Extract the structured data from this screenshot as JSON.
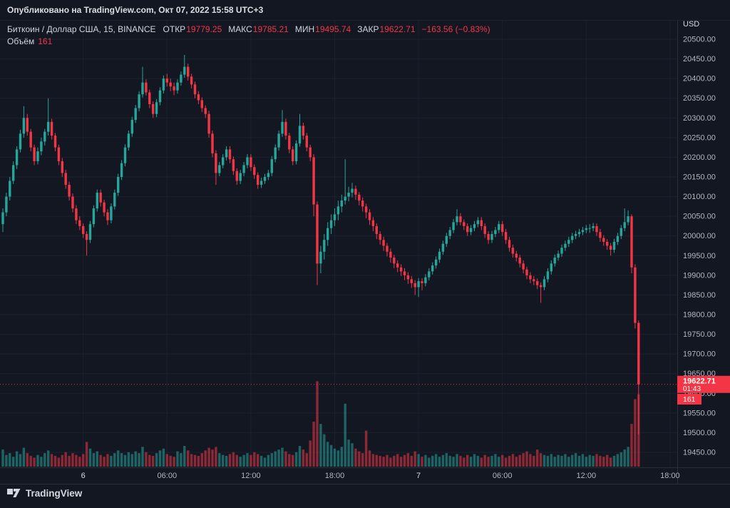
{
  "publish_bar": {
    "text": "Опубликовано на TradingView.com, Окт 07, 2022 15:58 UTC+3"
  },
  "legend": {
    "symbol": "Биткоин / Доллар США, 15, BINANCE",
    "fields": [
      {
        "label": "ОТКР",
        "value": "19779.25"
      },
      {
        "label": "МАКС",
        "value": "19785.21"
      },
      {
        "label": "МИН",
        "value": "19495.74"
      },
      {
        "label": "ЗАКР",
        "value": "19622.71"
      }
    ],
    "change": "−163.56 (−0.83%)",
    "volume_label": "Объём",
    "volume_value": "161"
  },
  "axis": {
    "currency": "USD",
    "price_min": 19450,
    "price_max": 20500,
    "price_step": 50,
    "time_ticks": [
      {
        "i": 23,
        "label": "6",
        "major": true
      },
      {
        "i": 47,
        "label": "06:00",
        "major": false
      },
      {
        "i": 71,
        "label": "12:00",
        "major": false
      },
      {
        "i": 95,
        "label": "18:00",
        "major": false
      },
      {
        "i": 119,
        "label": "7",
        "major": true
      },
      {
        "i": 143,
        "label": "06:00",
        "major": false
      },
      {
        "i": 167,
        "label": "12:00",
        "major": false
      },
      {
        "i": 191,
        "label": "18:00",
        "major": false
      }
    ],
    "last_price_badge": {
      "price": "19622.71",
      "countdown": "01:43"
    },
    "volume_badge": "161"
  },
  "footer": {
    "logo_text": "TradingView"
  },
  "colors": {
    "bg": "#131722",
    "up": "#26a69a",
    "down": "#f23645",
    "volume_up": "rgba(38,166,154,0.55)",
    "volume_down": "rgba(242,54,69,0.55)",
    "grid": "#1c2130",
    "border": "#2a2e39",
    "axis_text": "#b2b5be",
    "axis_text_bright": "#d8dadf",
    "badge_text": "#ffffff",
    "last_line": "#f23645"
  },
  "chart_data": {
    "type": "candlestick",
    "title": "Биткоин / Доллар США, 15, BINANCE",
    "exchange": "BINANCE",
    "interval_minutes": 15,
    "ylim": [
      19450,
      20500
    ],
    "current": {
      "open": 19779.25,
      "high": 19785.21,
      "low": 19495.74,
      "close": 19622.71,
      "change": -163.56,
      "change_pct": -0.83,
      "volume": 161
    },
    "ohlc": [
      [
        20030,
        20070,
        20010,
        20060
      ],
      [
        20060,
        20110,
        20050,
        20100
      ],
      [
        20100,
        20150,
        20090,
        20140
      ],
      [
        20140,
        20190,
        20132,
        20180
      ],
      [
        20180,
        20228,
        20170,
        20220
      ],
      [
        20220,
        20270,
        20212,
        20260
      ],
      [
        20260,
        20330,
        20250,
        20300
      ],
      [
        20300,
        20310,
        20255,
        20265
      ],
      [
        20265,
        20272,
        20215,
        20225
      ],
      [
        20225,
        20232,
        20180,
        20190
      ],
      [
        20190,
        20225,
        20182,
        20215
      ],
      [
        20215,
        20250,
        20205,
        20240
      ],
      [
        20240,
        20272,
        20230,
        20265
      ],
      [
        20265,
        20350,
        20255,
        20290
      ],
      [
        20290,
        20298,
        20245,
        20255
      ],
      [
        20255,
        20262,
        20215,
        20225
      ],
      [
        20225,
        20232,
        20180,
        20190
      ],
      [
        20190,
        20198,
        20150,
        20160
      ],
      [
        20160,
        20168,
        20120,
        20130
      ],
      [
        20130,
        20138,
        20090,
        20100
      ],
      [
        20100,
        20108,
        20060,
        20070
      ],
      [
        20070,
        20078,
        20030,
        20040
      ],
      [
        20040,
        20050,
        20015,
        20025
      ],
      [
        20025,
        20032,
        19995,
        20005
      ],
      [
        20005,
        20012,
        19950,
        19990
      ],
      [
        19990,
        20038,
        19982,
        20030
      ],
      [
        20030,
        20078,
        20022,
        20070
      ],
      [
        20070,
        20118,
        20062,
        20110
      ],
      [
        20110,
        20118,
        20075,
        20085
      ],
      [
        20085,
        20092,
        20050,
        20060
      ],
      [
        20060,
        20068,
        20028,
        20040
      ],
      [
        20040,
        20083,
        20032,
        20075
      ],
      [
        20075,
        20118,
        20067,
        20110
      ],
      [
        20110,
        20158,
        20102,
        20150
      ],
      [
        20150,
        20193,
        20142,
        20185
      ],
      [
        20185,
        20233,
        20177,
        20225
      ],
      [
        20225,
        20268,
        20217,
        20260
      ],
      [
        20260,
        20303,
        20252,
        20295
      ],
      [
        20295,
        20333,
        20287,
        20325
      ],
      [
        20325,
        20368,
        20317,
        20360
      ],
      [
        20360,
        20430,
        20352,
        20390
      ],
      [
        20390,
        20398,
        20357,
        20365
      ],
      [
        20365,
        20372,
        20325,
        20335
      ],
      [
        20335,
        20342,
        20300,
        20310
      ],
      [
        20310,
        20348,
        20302,
        20340
      ],
      [
        20340,
        20378,
        20332,
        20370
      ],
      [
        20370,
        20408,
        20362,
        20400
      ],
      [
        20400,
        20412,
        20380,
        20390
      ],
      [
        20390,
        20400,
        20368,
        20380
      ],
      [
        20380,
        20390,
        20358,
        20370
      ],
      [
        20370,
        20398,
        20362,
        20390
      ],
      [
        20390,
        20418,
        20382,
        20410
      ],
      [
        20410,
        20460,
        20402,
        20430
      ],
      [
        20430,
        20438,
        20395,
        20405
      ],
      [
        20405,
        20412,
        20375,
        20385
      ],
      [
        20385,
        20392,
        20350,
        20360
      ],
      [
        20360,
        20368,
        20335,
        20345
      ],
      [
        20345,
        20352,
        20315,
        20325
      ],
      [
        20325,
        20332,
        20300,
        20310
      ],
      [
        20310,
        20318,
        20250,
        20260
      ],
      [
        20260,
        20268,
        20200,
        20210
      ],
      [
        20210,
        20218,
        20130,
        20160
      ],
      [
        20160,
        20188,
        20152,
        20180
      ],
      [
        20180,
        20208,
        20172,
        20200
      ],
      [
        20200,
        20228,
        20192,
        20220
      ],
      [
        20220,
        20228,
        20185,
        20195
      ],
      [
        20195,
        20202,
        20155,
        20165
      ],
      [
        20165,
        20172,
        20130,
        20140
      ],
      [
        20140,
        20168,
        20132,
        20160
      ],
      [
        20160,
        20188,
        20152,
        20180
      ],
      [
        20180,
        20208,
        20172,
        20200
      ],
      [
        20200,
        20208,
        20165,
        20175
      ],
      [
        20175,
        20182,
        20145,
        20155
      ],
      [
        20155,
        20162,
        20120,
        20130
      ],
      [
        20130,
        20148,
        20122,
        20140
      ],
      [
        20140,
        20158,
        20132,
        20150
      ],
      [
        20150,
        20168,
        20142,
        20160
      ],
      [
        20160,
        20203,
        20152,
        20195
      ],
      [
        20195,
        20233,
        20187,
        20225
      ],
      [
        20225,
        20268,
        20217,
        20260
      ],
      [
        20260,
        20320,
        20252,
        20290
      ],
      [
        20290,
        20298,
        20245,
        20255
      ],
      [
        20255,
        20262,
        20210,
        20220
      ],
      [
        20220,
        20228,
        20180,
        20190
      ],
      [
        20190,
        20243,
        20182,
        20235
      ],
      [
        20235,
        20310,
        20227,
        20280
      ],
      [
        20280,
        20288,
        20245,
        20255
      ],
      [
        20255,
        20262,
        20215,
        20225
      ],
      [
        20225,
        20232,
        20190,
        20200
      ],
      [
        20200,
        20208,
        20050,
        20080
      ],
      [
        20080,
        20088,
        19875,
        19930
      ],
      [
        19930,
        19975,
        19905,
        19960
      ],
      [
        19960,
        20005,
        19940,
        19990
      ],
      [
        19990,
        20035,
        19975,
        20020
      ],
      [
        20020,
        20055,
        20005,
        20040
      ],
      [
        20040,
        20070,
        20025,
        20055
      ],
      [
        20055,
        20090,
        20040,
        20075
      ],
      [
        20075,
        20105,
        20060,
        20090
      ],
      [
        20090,
        20195,
        20080,
        20100
      ],
      [
        20100,
        20125,
        20088,
        20110
      ],
      [
        20110,
        20135,
        20098,
        20120
      ],
      [
        20120,
        20128,
        20092,
        20105
      ],
      [
        20105,
        20112,
        20078,
        20090
      ],
      [
        20090,
        20098,
        20062,
        20075
      ],
      [
        20075,
        20082,
        20045,
        20060
      ],
      [
        20060,
        20068,
        20028,
        20040
      ],
      [
        20040,
        20048,
        20012,
        20025
      ],
      [
        20025,
        20032,
        19992,
        20005
      ],
      [
        20005,
        20012,
        19978,
        19990
      ],
      [
        19990,
        19998,
        19962,
        19975
      ],
      [
        19975,
        19982,
        19948,
        19960
      ],
      [
        19960,
        19968,
        19932,
        19945
      ],
      [
        19945,
        19952,
        19918,
        19930
      ],
      [
        19930,
        19938,
        19908,
        19920
      ],
      [
        19920,
        19928,
        19898,
        19910
      ],
      [
        19910,
        19918,
        19888,
        19900
      ],
      [
        19900,
        19908,
        19878,
        19890
      ],
      [
        19890,
        19898,
        19868,
        19880
      ],
      [
        19880,
        19888,
        19850,
        19870
      ],
      [
        19870,
        19893,
        19845,
        19885
      ],
      [
        19885,
        19893,
        19862,
        19880
      ],
      [
        19880,
        19903,
        19872,
        19895
      ],
      [
        19895,
        19918,
        19887,
        19910
      ],
      [
        19910,
        19933,
        19902,
        19925
      ],
      [
        19925,
        19948,
        19917,
        19940
      ],
      [
        19940,
        19968,
        19932,
        19960
      ],
      [
        19960,
        19988,
        19952,
        19980
      ],
      [
        19980,
        20008,
        19972,
        20000
      ],
      [
        20000,
        20023,
        19992,
        20015
      ],
      [
        20015,
        20043,
        20007,
        20035
      ],
      [
        20035,
        20068,
        20027,
        20050
      ],
      [
        20050,
        20058,
        20027,
        20035
      ],
      [
        20035,
        20042,
        20015,
        20025
      ],
      [
        20025,
        20032,
        20000,
        20010
      ],
      [
        20010,
        20028,
        20002,
        20020
      ],
      [
        20020,
        20038,
        20012,
        20030
      ],
      [
        20030,
        20048,
        20022,
        20040
      ],
      [
        20040,
        20048,
        20015,
        20025
      ],
      [
        20025,
        20032,
        19995,
        20005
      ],
      [
        20005,
        20012,
        19980,
        19990
      ],
      [
        19990,
        20013,
        19982,
        20005
      ],
      [
        20005,
        20023,
        19997,
        20015
      ],
      [
        20015,
        20038,
        20007,
        20030
      ],
      [
        20030,
        20038,
        20000,
        20010
      ],
      [
        20010,
        20018,
        19980,
        19990
      ],
      [
        19990,
        19998,
        19960,
        19970
      ],
      [
        19970,
        19978,
        19945,
        19955
      ],
      [
        19955,
        19962,
        19935,
        19945
      ],
      [
        19945,
        19952,
        19920,
        19930
      ],
      [
        19930,
        19938,
        19905,
        19915
      ],
      [
        19915,
        19922,
        19890,
        19900
      ],
      [
        19900,
        19908,
        19880,
        19890
      ],
      [
        19890,
        19898,
        19875,
        19885
      ],
      [
        19885,
        19892,
        19865,
        19875
      ],
      [
        19875,
        19882,
        19830,
        19870
      ],
      [
        19870,
        19898,
        19862,
        19890
      ],
      [
        19890,
        19918,
        19882,
        19910
      ],
      [
        19910,
        19938,
        19902,
        19930
      ],
      [
        19930,
        19953,
        19922,
        19945
      ],
      [
        19945,
        19963,
        19937,
        19955
      ],
      [
        19955,
        19978,
        19947,
        19970
      ],
      [
        19970,
        19988,
        19962,
        19980
      ],
      [
        19980,
        19998,
        19972,
        19990
      ],
      [
        19990,
        20008,
        19982,
        20000
      ],
      [
        20000,
        20013,
        19992,
        20005
      ],
      [
        20005,
        20018,
        19997,
        20010
      ],
      [
        20010,
        20023,
        20002,
        20015
      ],
      [
        20015,
        20028,
        20007,
        20020
      ],
      [
        20020,
        20030,
        20008,
        20020
      ],
      [
        20020,
        20033,
        20012,
        20025
      ],
      [
        20025,
        20032,
        20000,
        20010
      ],
      [
        20010,
        20018,
        19985,
        19995
      ],
      [
        19995,
        20002,
        19975,
        19985
      ],
      [
        19985,
        19992,
        19965,
        19975
      ],
      [
        19975,
        19982,
        19950,
        19965
      ],
      [
        19965,
        19993,
        19957,
        19985
      ],
      [
        19985,
        20008,
        19977,
        20000
      ],
      [
        20000,
        20028,
        19992,
        20020
      ],
      [
        20020,
        20070,
        20012,
        20035
      ],
      [
        20035,
        20065,
        20027,
        20050
      ],
      [
        20050,
        20055,
        19905,
        19920
      ],
      [
        19920,
        19928,
        19765,
        19779
      ],
      [
        19779.25,
        19785.21,
        19495.74,
        19622.71
      ]
    ],
    "volumes": [
      38,
      26,
      30,
      22,
      34,
      28,
      42,
      30,
      24,
      20,
      26,
      22,
      30,
      36,
      28,
      24,
      20,
      26,
      32,
      24,
      30,
      26,
      22,
      28,
      55,
      40,
      30,
      34,
      26,
      22,
      28,
      24,
      30,
      36,
      30,
      26,
      32,
      28,
      34,
      30,
      44,
      32,
      26,
      24,
      30,
      36,
      40,
      28,
      24,
      22,
      34,
      30,
      46,
      36,
      28,
      26,
      24,
      30,
      36,
      42,
      38,
      44,
      30,
      26,
      24,
      28,
      32,
      26,
      22,
      26,
      30,
      26,
      32,
      28,
      24,
      20,
      26,
      30,
      34,
      38,
      42,
      34,
      28,
      26,
      32,
      46,
      38,
      30,
      58,
      100,
      190,
      95,
      72,
      55,
      48,
      40,
      36,
      44,
      140,
      60,
      52,
      40,
      34,
      30,
      80,
      36,
      28,
      26,
      24,
      22,
      26,
      20,
      24,
      28,
      22,
      26,
      30,
      24,
      34,
      28,
      22,
      26,
      20,
      24,
      28,
      22,
      26,
      30,
      24,
      22,
      28,
      24,
      20,
      26,
      22,
      28,
      24,
      20,
      26,
      22,
      24,
      28,
      22,
      26,
      20,
      24,
      28,
      22,
      26,
      30,
      34,
      28,
      24,
      38,
      30,
      26,
      24,
      28,
      22,
      26,
      24,
      28,
      22,
      26,
      30,
      24,
      28,
      22,
      26,
      24,
      28,
      24,
      22,
      26,
      20,
      24,
      28,
      32,
      38,
      44,
      95,
      150,
      161
    ]
  }
}
